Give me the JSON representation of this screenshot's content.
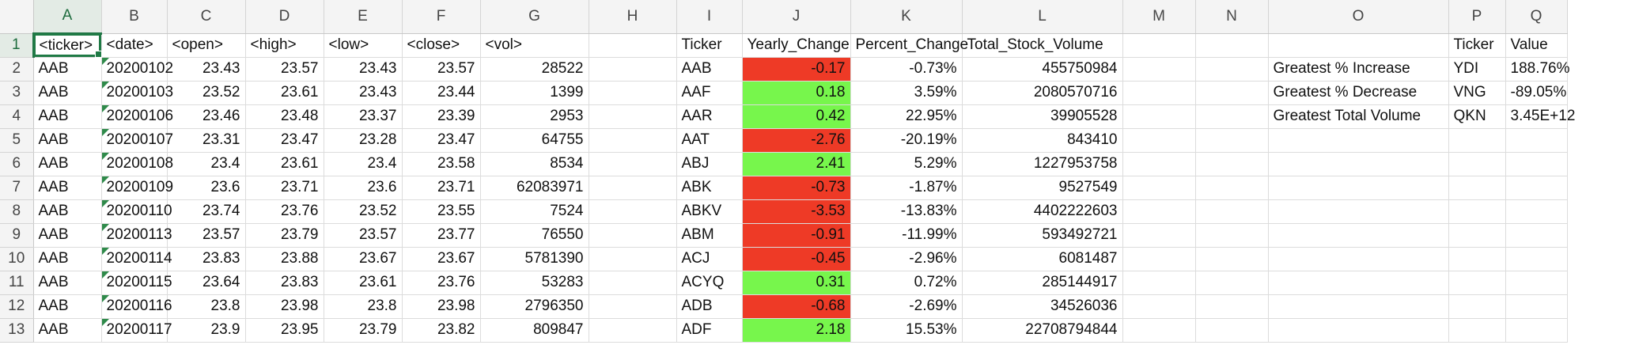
{
  "sheet": {
    "columns": [
      "A",
      "B",
      "C",
      "D",
      "E",
      "F",
      "G",
      "H",
      "I",
      "J",
      "K",
      "L",
      "M",
      "N",
      "O",
      "P",
      "Q"
    ],
    "rows": [
      "1",
      "2",
      "3",
      "4",
      "5",
      "6",
      "7",
      "8",
      "9",
      "10",
      "11",
      "12",
      "13"
    ],
    "selected_column": "A",
    "selected_row": "1",
    "colors": {
      "positive_fill": "#77f64c",
      "negative_fill": "#ee3a26",
      "selection_accent": "#217346"
    },
    "cells": [
      [
        "<ticker>",
        "<date>",
        "<open>",
        "<high>",
        "<low>",
        "<close>",
        "<vol>",
        "",
        "Ticker",
        "Yearly_Change",
        "Percent_Change",
        "Total_Stock_Volume",
        "",
        "",
        "",
        "Ticker",
        "Value"
      ],
      [
        "AAB",
        "20200102",
        "23.43",
        "23.57",
        "23.43",
        "23.57",
        "28522",
        "",
        "AAB",
        "-0.17",
        "-0.73%",
        "455750984",
        "",
        "",
        "Greatest % Increase",
        "YDI",
        "188.76%"
      ],
      [
        "AAB",
        "20200103",
        "23.52",
        "23.61",
        "23.43",
        "23.44",
        "1399",
        "",
        "AAF",
        "0.18",
        "3.59%",
        "2080570716",
        "",
        "",
        "Greatest % Decrease",
        "VNG",
        "-89.05%"
      ],
      [
        "AAB",
        "20200106",
        "23.46",
        "23.48",
        "23.37",
        "23.39",
        "2953",
        "",
        "AAR",
        "0.42",
        "22.95%",
        "39905528",
        "",
        "",
        "Greatest Total Volume",
        "QKN",
        "3.45E+12"
      ],
      [
        "AAB",
        "20200107",
        "23.31",
        "23.47",
        "23.28",
        "23.47",
        "64755",
        "",
        "AAT",
        "-2.76",
        "-20.19%",
        "843410",
        "",
        "",
        "",
        "",
        ""
      ],
      [
        "AAB",
        "20200108",
        "23.4",
        "23.61",
        "23.4",
        "23.58",
        "8534",
        "",
        "ABJ",
        "2.41",
        "5.29%",
        "1227953758",
        "",
        "",
        "",
        "",
        ""
      ],
      [
        "AAB",
        "20200109",
        "23.6",
        "23.71",
        "23.6",
        "23.71",
        "62083971",
        "",
        "ABK",
        "-0.73",
        "-1.87%",
        "9527549",
        "",
        "",
        "",
        "",
        ""
      ],
      [
        "AAB",
        "20200110",
        "23.74",
        "23.76",
        "23.52",
        "23.55",
        "7524",
        "",
        "ABKV",
        "-3.53",
        "-13.83%",
        "4402222603",
        "",
        "",
        "",
        "",
        ""
      ],
      [
        "AAB",
        "20200113",
        "23.57",
        "23.79",
        "23.57",
        "23.77",
        "76550",
        "",
        "ABM",
        "-0.91",
        "-11.99%",
        "593492721",
        "",
        "",
        "",
        "",
        ""
      ],
      [
        "AAB",
        "20200114",
        "23.83",
        "23.88",
        "23.67",
        "23.67",
        "5781390",
        "",
        "ACJ",
        "-0.45",
        "-2.96%",
        "6081487",
        "",
        "",
        "",
        "",
        ""
      ],
      [
        "AAB",
        "20200115",
        "23.64",
        "23.83",
        "23.61",
        "23.76",
        "53283",
        "",
        "ACYQ",
        "0.31",
        "0.72%",
        "285144917",
        "",
        "",
        "",
        "",
        ""
      ],
      [
        "AAB",
        "20200116",
        "23.8",
        "23.98",
        "23.8",
        "23.98",
        "2796350",
        "",
        "ADB",
        "-0.68",
        "-2.69%",
        "34526036",
        "",
        "",
        "",
        "",
        ""
      ],
      [
        "AAB",
        "20200117",
        "23.9",
        "23.95",
        "23.79",
        "23.82",
        "809847",
        "",
        "ADF",
        "2.18",
        "15.53%",
        "22708794844",
        "",
        "",
        "",
        "",
        ""
      ]
    ]
  }
}
